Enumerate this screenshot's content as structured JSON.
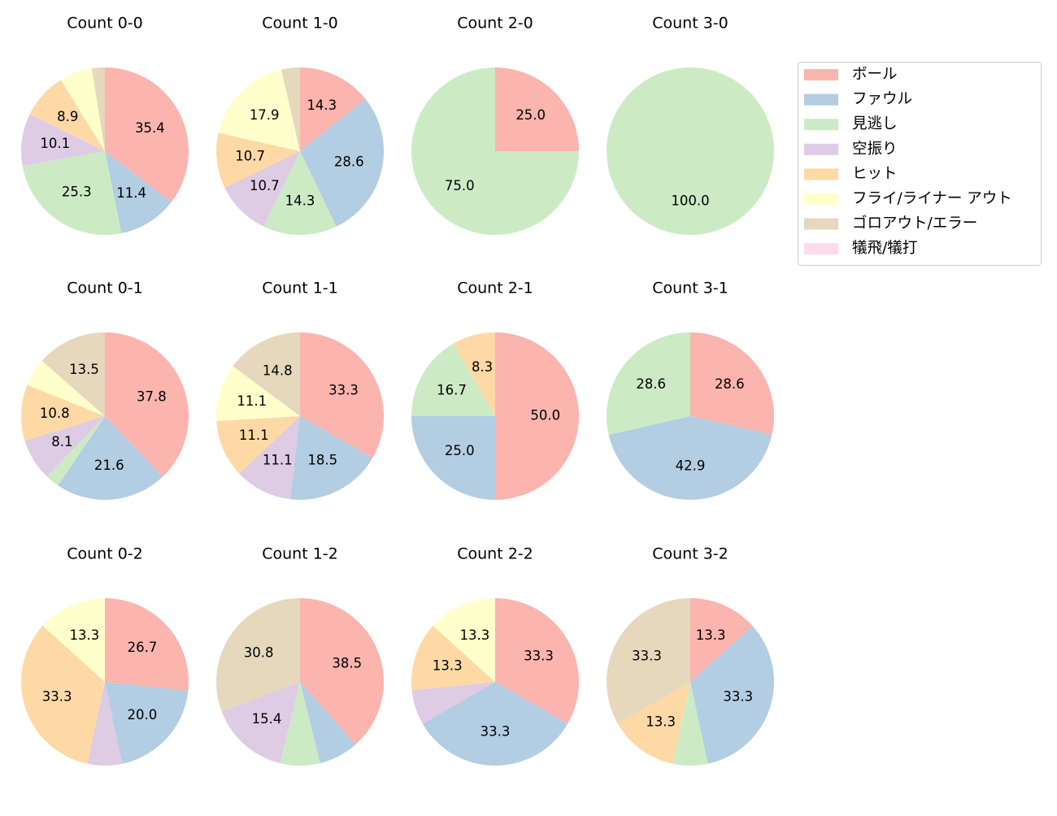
{
  "legend": {
    "labels": [
      "ボール",
      "ファウル",
      "見逃し",
      "空振り",
      "ヒット",
      "フライ/ライナー アウト",
      "ゴロアウト/エラー",
      "犠飛/犠打"
    ],
    "colors": [
      "#fbb4ae",
      "#b3cde3",
      "#ccebc5",
      "#decbe4",
      "#fed9a6",
      "#ffffcc",
      "#e5d8bd",
      "#fddaec"
    ],
    "position": "upper right"
  },
  "chart_data": [
    {
      "type": "pie",
      "title": "Count 0-0",
      "values": [
        35.4,
        11.4,
        25.3,
        10.1,
        8.9,
        6.3,
        2.5,
        0
      ],
      "value_labels": [
        "35.4",
        "11.4",
        "25.3",
        "10.1",
        "8.9",
        null,
        null,
        null
      ]
    },
    {
      "type": "pie",
      "title": "Count 1-0",
      "values": [
        14.3,
        28.6,
        14.3,
        10.7,
        10.7,
        17.9,
        3.6,
        0
      ],
      "value_labels": [
        "14.3",
        "28.6",
        "14.3",
        "10.7",
        "10.7",
        "17.9",
        null,
        null
      ]
    },
    {
      "type": "pie",
      "title": "Count 2-0",
      "values": [
        25,
        0,
        75,
        0,
        0,
        0,
        0,
        0
      ],
      "value_labels": [
        "25.0",
        null,
        "75.0",
        null,
        null,
        null,
        null,
        null
      ]
    },
    {
      "type": "pie",
      "title": "Count 3-0",
      "values": [
        0,
        0,
        100,
        0,
        0,
        0,
        0,
        0
      ],
      "value_labels": [
        null,
        null,
        "100.0",
        null,
        null,
        null,
        null,
        null
      ]
    },
    {
      "type": "pie",
      "title": "Count 0-1",
      "values": [
        37.8,
        21.6,
        2.7,
        8.1,
        10.8,
        5.4,
        13.5,
        0
      ],
      "value_labels": [
        "37.8",
        "21.6",
        null,
        "8.1",
        "10.8",
        null,
        "13.5",
        null
      ]
    },
    {
      "type": "pie",
      "title": "Count 1-1",
      "values": [
        33.3,
        18.5,
        0,
        11.1,
        11.1,
        11.1,
        14.8,
        0
      ],
      "value_labels": [
        "33.3",
        "18.5",
        null,
        "11.1",
        "11.1",
        "11.1",
        "14.8",
        null
      ]
    },
    {
      "type": "pie",
      "title": "Count 2-1",
      "values": [
        50,
        25,
        16.7,
        0,
        8.3,
        0,
        0,
        0
      ],
      "value_labels": [
        "50.0",
        "25.0",
        "16.7",
        null,
        "8.3",
        null,
        null,
        null
      ]
    },
    {
      "type": "pie",
      "title": "Count 3-1",
      "values": [
        28.6,
        42.9,
        28.6,
        0,
        0,
        0,
        0,
        0
      ],
      "value_labels": [
        "28.6",
        "42.9",
        "28.6",
        null,
        null,
        null,
        null,
        null
      ]
    },
    {
      "type": "pie",
      "title": "Count 0-2",
      "values": [
        26.7,
        20,
        0,
        6.7,
        33.3,
        13.3,
        0,
        0
      ],
      "value_labels": [
        "26.7",
        "20.0",
        null,
        null,
        "33.3",
        "13.3",
        null,
        null
      ]
    },
    {
      "type": "pie",
      "title": "Count 1-2",
      "values": [
        38.5,
        7.7,
        7.7,
        15.4,
        0,
        0,
        30.8,
        0
      ],
      "value_labels": [
        "38.5",
        null,
        null,
        "15.4",
        null,
        null,
        "30.8",
        null
      ]
    },
    {
      "type": "pie",
      "title": "Count 2-2",
      "values": [
        33.3,
        33.3,
        0,
        6.7,
        13.3,
        13.3,
        0,
        0
      ],
      "value_labels": [
        "33.3",
        "33.3",
        null,
        null,
        "13.3",
        "13.3",
        null,
        null
      ]
    },
    {
      "type": "pie",
      "title": "Count 3-2",
      "values": [
        13.3,
        33.3,
        6.7,
        0,
        13.3,
        0,
        33.3,
        0
      ],
      "value_labels": [
        "13.3",
        "33.3",
        null,
        null,
        "13.3",
        null,
        "33.3",
        null
      ]
    }
  ]
}
